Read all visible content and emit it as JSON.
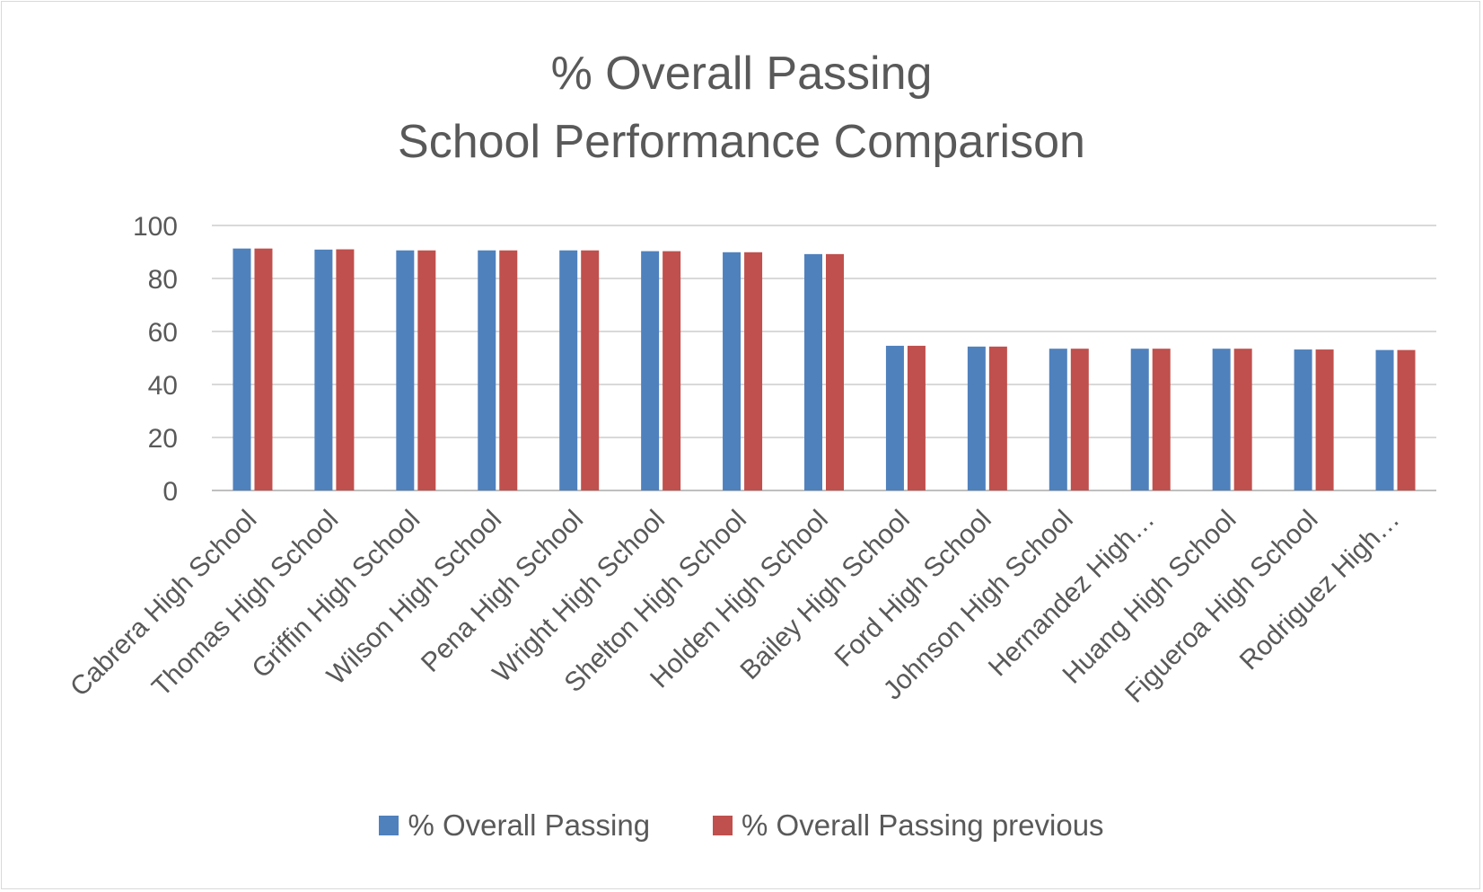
{
  "chart_data": {
    "type": "bar",
    "title": "% Overall Passing",
    "subtitle": "School Performance Comparison",
    "categories": [
      "Cabrera High School",
      "Thomas High School",
      "Griffin High School",
      "Wilson High School",
      "Pena High School",
      "Wright High School",
      "Shelton High School",
      "Holden High School",
      "Bailey High School",
      "Ford High School",
      "Johnson High School",
      "Hernandez High…",
      "Huang High School",
      "Figueroa High School",
      "Rodriguez High…"
    ],
    "series": [
      {
        "name": "% Overall Passing",
        "color": "#4f81bd",
        "values": [
          91.3,
          90.9,
          90.6,
          90.6,
          90.6,
          90.3,
          89.9,
          89.2,
          54.6,
          54.3,
          53.5,
          53.5,
          53.5,
          53.2,
          53.0
        ]
      },
      {
        "name": "% Overall Passing previous",
        "color": "#c0504d",
        "values": [
          91.3,
          91.0,
          90.6,
          90.6,
          90.6,
          90.3,
          89.9,
          89.2,
          54.6,
          54.3,
          53.5,
          53.5,
          53.5,
          53.2,
          53.0
        ]
      }
    ],
    "yticks": [
      "0",
      "20",
      "40",
      "60",
      "80",
      "100"
    ],
    "ylim": [
      0,
      100
    ],
    "grid": true,
    "legend_position": "bottom"
  }
}
